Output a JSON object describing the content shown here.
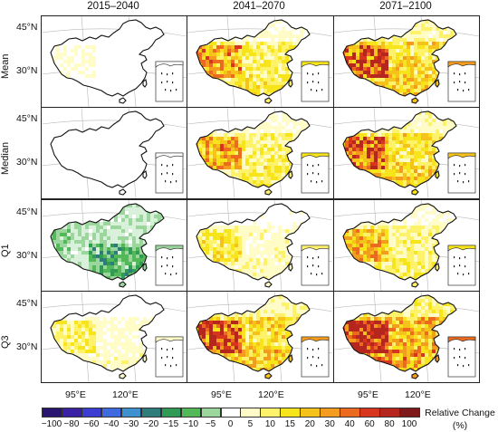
{
  "columns": [
    "2015–2040",
    "2041–2070",
    "2071–2100"
  ],
  "rows": [
    "Mean",
    "Median",
    "Q1",
    "Q3"
  ],
  "latitude_labels": [
    "45°N",
    "30°N"
  ],
  "longitude_labels": [
    "95°E",
    "120°E"
  ],
  "colorbar": {
    "title_line1": "Relative Change",
    "title_line2": "(%)",
    "ticks": [
      "−100",
      "−80",
      "−60",
      "−40",
      "−30",
      "−20",
      "−15",
      "−10",
      "−5",
      "0",
      "5",
      "10",
      "15",
      "20",
      "30",
      "40",
      "60",
      "80",
      "100"
    ],
    "colors": [
      "#2a1570",
      "#3a22a4",
      "#3b3ed0",
      "#3f6ae0",
      "#3f91cf",
      "#2f7d7a",
      "#2f9b55",
      "#53b858",
      "#9bd69c",
      "#ffffff",
      "#fffcc8",
      "#fff26b",
      "#f8e41a",
      "#f5c31a",
      "#f49c1e",
      "#ec6a1f",
      "#d8351f",
      "#b5261e",
      "#7e1a1a"
    ]
  },
  "panels": [
    {
      "row": "Mean",
      "column": "2015–2040",
      "level": 0.1
    },
    {
      "row": "Mean",
      "column": "2041–2070",
      "level": 0.45
    },
    {
      "row": "Mean",
      "column": "2071–2100",
      "level": 0.62
    },
    {
      "row": "Median",
      "column": "2015–2040",
      "level": 0.05
    },
    {
      "row": "Median",
      "column": "2041–2070",
      "level": 0.42
    },
    {
      "row": "Median",
      "column": "2071–2100",
      "level": 0.6
    },
    {
      "row": "Q1",
      "column": "2015–2040",
      "level": -0.55
    },
    {
      "row": "Q1",
      "column": "2041–2070",
      "level": 0.25
    },
    {
      "row": "Q1",
      "column": "2071–2100",
      "level": 0.38
    },
    {
      "row": "Q3",
      "column": "2015–2040",
      "level": 0.22
    },
    {
      "row": "Q3",
      "column": "2041–2070",
      "level": 0.62
    },
    {
      "row": "Q3",
      "column": "2071–2100",
      "level": 0.78
    }
  ]
}
